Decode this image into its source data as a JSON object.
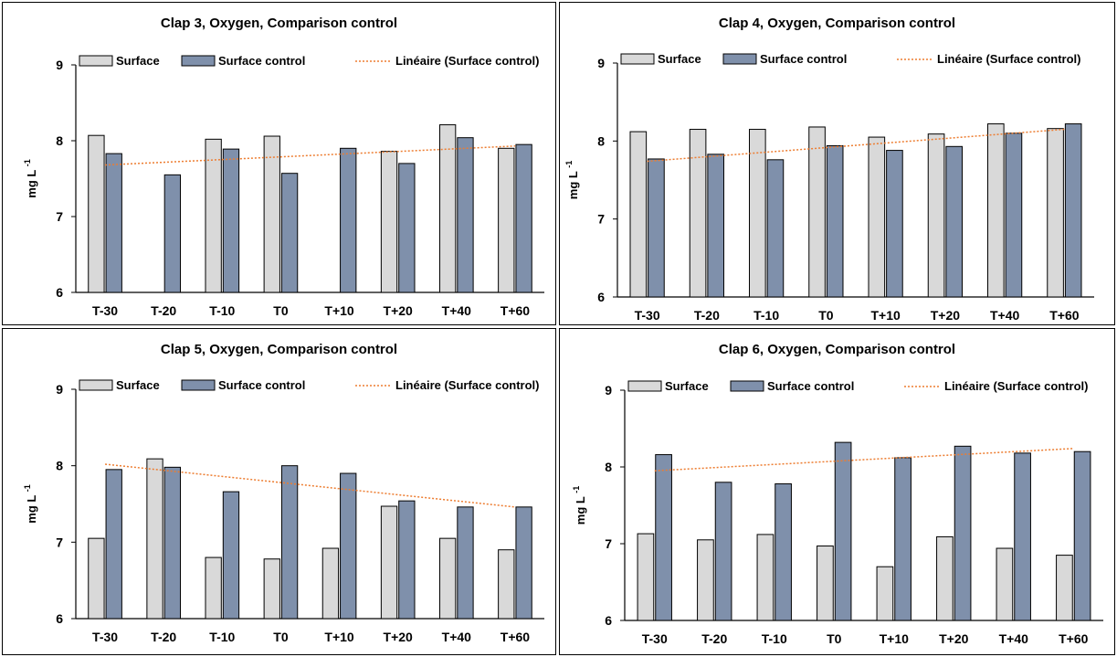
{
  "chart_data": [
    {
      "type": "bar",
      "title": "Clap 3, Oxygen, Comparison control",
      "ylabel": "mg L -1",
      "ylim": [
        6,
        9
      ],
      "yticks": [
        6,
        7,
        8,
        9
      ],
      "categories": [
        "T-30",
        "T-20",
        "T-10",
        "T0",
        "T+10",
        "T+20",
        "T+40",
        "T+60"
      ],
      "legend": [
        "Surface",
        "Surface control",
        "Linéaire (Surface control)"
      ],
      "legend_position": "top",
      "series": [
        {
          "name": "Surface",
          "values": [
            8.07,
            null,
            8.02,
            8.06,
            null,
            7.86,
            8.21,
            7.9
          ]
        },
        {
          "name": "Surface control",
          "values": [
            7.83,
            7.55,
            7.89,
            7.57,
            7.9,
            7.7,
            8.04,
            7.95
          ]
        }
      ],
      "trendline": {
        "name": "Linéaire (Surface control)",
        "start": 7.68,
        "end": 7.93
      }
    },
    {
      "type": "bar",
      "title": "Clap 4, Oxygen, Comparison control",
      "ylabel": "mg L -1",
      "ylim": [
        6,
        9
      ],
      "yticks": [
        6,
        7,
        8,
        9
      ],
      "categories": [
        "T-30",
        "T-20",
        "T-10",
        "T0",
        "T+10",
        "T+20",
        "T+40",
        "T+60"
      ],
      "legend": [
        "Surface",
        "Surface control",
        "Linéaire (Surface control)"
      ],
      "legend_position": "top",
      "series": [
        {
          "name": "Surface",
          "values": [
            8.12,
            8.15,
            8.15,
            8.18,
            8.05,
            8.09,
            8.22,
            8.16
          ]
        },
        {
          "name": "Surface control",
          "values": [
            7.77,
            7.83,
            7.76,
            7.94,
            7.88,
            7.93,
            8.1,
            8.22
          ]
        }
      ],
      "trendline": {
        "name": "Linéaire (Surface control)",
        "start": 7.74,
        "end": 8.15
      }
    },
    {
      "type": "bar",
      "title": "Clap 5, Oxygen, Comparison control",
      "ylabel": "mg L -1",
      "ylim": [
        6,
        9
      ],
      "yticks": [
        6,
        7,
        8,
        9
      ],
      "categories": [
        "T-30",
        "T-20",
        "T-10",
        "T0",
        "T+10",
        "T+20",
        "T+40",
        "T+60"
      ],
      "legend": [
        "Surface",
        "Surface control",
        "Linéaire (Surface control)"
      ],
      "legend_position": "top",
      "series": [
        {
          "name": "Surface",
          "values": [
            7.05,
            8.09,
            6.8,
            6.78,
            6.92,
            7.47,
            7.05,
            6.9
          ]
        },
        {
          "name": "Surface control",
          "values": [
            7.95,
            7.98,
            7.66,
            8.0,
            7.9,
            7.54,
            7.46,
            7.46
          ]
        }
      ],
      "trendline": {
        "name": "Linéaire (Surface control)",
        "start": 8.02,
        "end": 7.46
      }
    },
    {
      "type": "bar",
      "title": "Clap 6, Oxygen, Comparison control",
      "ylabel": "mg L -1",
      "ylim": [
        6,
        9
      ],
      "yticks": [
        6,
        7,
        8,
        9
      ],
      "categories": [
        "T-30",
        "T-20",
        "T-10",
        "T0",
        "T+10",
        "T+20",
        "T+40",
        "T+60"
      ],
      "legend": [
        "Surface",
        "Surface control",
        "Linéaire (Surface control)"
      ],
      "legend_position": "top",
      "series": [
        {
          "name": "Surface",
          "values": [
            7.13,
            7.05,
            7.12,
            6.97,
            6.7,
            7.09,
            6.94,
            6.85
          ]
        },
        {
          "name": "Surface control",
          "values": [
            8.16,
            7.8,
            7.78,
            8.32,
            8.12,
            8.27,
            8.18,
            8.2
          ]
        }
      ],
      "trendline": {
        "name": "Linéaire (Surface control)",
        "start": 7.95,
        "end": 8.24
      }
    }
  ],
  "colors": {
    "surface": "#d9d9d9",
    "surface_control": "#7f90ab",
    "trendline": "#ed7d31",
    "border": "#000000"
  }
}
